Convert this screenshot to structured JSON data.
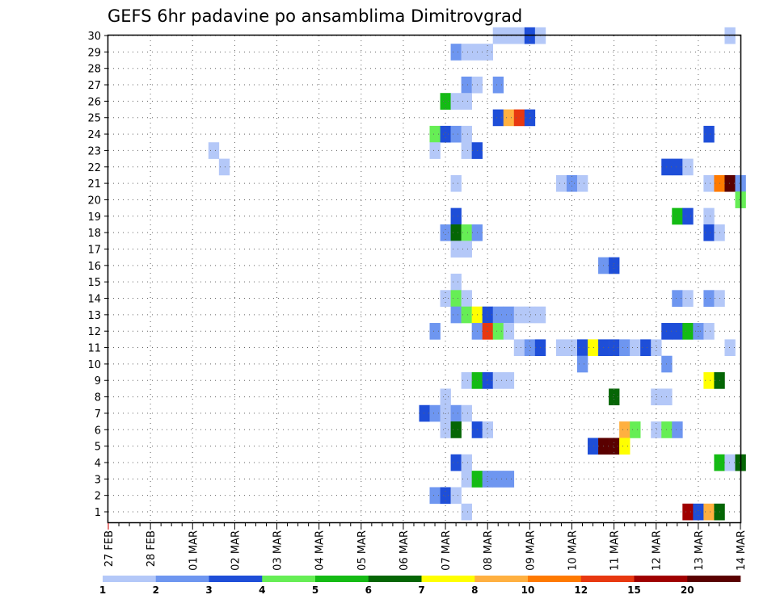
{
  "chart_data": {
    "type": "heatmap",
    "title": "GEFS 6hr padavine po ansamblima Dimitrovgrad",
    "xlabel": "",
    "ylabel": "",
    "x_ticks": [
      "27 FEB",
      "28 FEB",
      "01 MAR",
      "02 MAR",
      "03 MAR",
      "04 MAR",
      "05 MAR",
      "06 MAR",
      "07 MAR",
      "08 MAR",
      "09 MAR",
      "10 MAR",
      "11 MAR",
      "12 MAR",
      "13 MAR",
      "14 MAR"
    ],
    "x_unit": "6-hour step from 27 FEB 00h",
    "members": [
      1,
      2,
      3,
      4,
      5,
      6,
      7,
      8,
      9,
      10,
      11,
      12,
      13,
      14,
      15,
      16,
      17,
      18,
      19,
      20,
      21,
      22,
      23,
      24,
      25,
      26,
      27,
      28,
      29,
      30
    ],
    "grid": true,
    "legend_position": "bottom",
    "bins": [
      {
        "label": "1",
        "color": "#b4c8f8"
      },
      {
        "label": "2",
        "color": "#6e96f0"
      },
      {
        "label": "3",
        "color": "#1e4ed8"
      },
      {
        "label": "4",
        "color": "#66ee55"
      },
      {
        "label": "5",
        "color": "#14bb14"
      },
      {
        "label": "6",
        "color": "#056605"
      },
      {
        "label": "7",
        "color": "#ffff00"
      },
      {
        "label": "8",
        "color": "#ffb040"
      },
      {
        "label": "10",
        "color": "#ff7a00"
      },
      {
        "label": "12",
        "color": "#e83810"
      },
      {
        "label": "15",
        "color": "#a00000"
      },
      {
        "label": "20",
        "color": "#5a0000"
      }
    ],
    "cells": [
      {
        "m": 30,
        "t": 37,
        "b": 0
      },
      {
        "m": 30,
        "t": 38,
        "b": 0
      },
      {
        "m": 30,
        "t": 39,
        "b": 0
      },
      {
        "m": 30,
        "t": 40,
        "b": 2
      },
      {
        "m": 30,
        "t": 41,
        "b": 0
      },
      {
        "m": 30,
        "t": 59,
        "b": 0
      },
      {
        "m": 29,
        "t": 33,
        "b": 1
      },
      {
        "m": 29,
        "t": 34,
        "b": 0
      },
      {
        "m": 29,
        "t": 35,
        "b": 0
      },
      {
        "m": 29,
        "t": 36,
        "b": 0
      },
      {
        "m": 27,
        "t": 34,
        "b": 1
      },
      {
        "m": 27,
        "t": 35,
        "b": 0
      },
      {
        "m": 27,
        "t": 37,
        "b": 1
      },
      {
        "m": 26,
        "t": 32,
        "b": 4
      },
      {
        "m": 26,
        "t": 33,
        "b": 0
      },
      {
        "m": 26,
        "t": 34,
        "b": 0
      },
      {
        "m": 25,
        "t": 37,
        "b": 2
      },
      {
        "m": 25,
        "t": 38,
        "b": 7
      },
      {
        "m": 25,
        "t": 39,
        "b": 9
      },
      {
        "m": 25,
        "t": 40,
        "b": 2
      },
      {
        "m": 24,
        "t": 31,
        "b": 3
      },
      {
        "m": 24,
        "t": 32,
        "b": 2
      },
      {
        "m": 24,
        "t": 33,
        "b": 1
      },
      {
        "m": 24,
        "t": 34,
        "b": 0
      },
      {
        "m": 24,
        "t": 57,
        "b": 2
      },
      {
        "m": 23,
        "t": 10,
        "b": 0
      },
      {
        "m": 23,
        "t": 31,
        "b": 0
      },
      {
        "m": 23,
        "t": 34,
        "b": 0
      },
      {
        "m": 23,
        "t": 35,
        "b": 2
      },
      {
        "m": 22,
        "t": 11,
        "b": 0
      },
      {
        "m": 22,
        "t": 53,
        "b": 2
      },
      {
        "m": 22,
        "t": 54,
        "b": 2
      },
      {
        "m": 22,
        "t": 55,
        "b": 0
      },
      {
        "m": 21,
        "t": 33,
        "b": 0
      },
      {
        "m": 21,
        "t": 43,
        "b": 0
      },
      {
        "m": 21,
        "t": 44,
        "b": 1
      },
      {
        "m": 21,
        "t": 45,
        "b": 0
      },
      {
        "m": 21,
        "t": 57,
        "b": 0
      },
      {
        "m": 21,
        "t": 58,
        "b": 8
      },
      {
        "m": 21,
        "t": 59,
        "b": 11
      },
      {
        "m": 21,
        "t": 60,
        "b": 1
      },
      {
        "m": 20,
        "t": 60,
        "b": 3
      },
      {
        "m": 19,
        "t": 33,
        "b": 2
      },
      {
        "m": 19,
        "t": 54,
        "b": 4
      },
      {
        "m": 19,
        "t": 55,
        "b": 2
      },
      {
        "m": 19,
        "t": 57,
        "b": 0
      },
      {
        "m": 18,
        "t": 32,
        "b": 1
      },
      {
        "m": 18,
        "t": 33,
        "b": 5
      },
      {
        "m": 18,
        "t": 34,
        "b": 3
      },
      {
        "m": 18,
        "t": 35,
        "b": 1
      },
      {
        "m": 18,
        "t": 57,
        "b": 2
      },
      {
        "m": 18,
        "t": 58,
        "b": 0
      },
      {
        "m": 17,
        "t": 33,
        "b": 0
      },
      {
        "m": 17,
        "t": 34,
        "b": 0
      },
      {
        "m": 16,
        "t": 47,
        "b": 1
      },
      {
        "m": 16,
        "t": 48,
        "b": 2
      },
      {
        "m": 15,
        "t": 33,
        "b": 0
      },
      {
        "m": 14,
        "t": 32,
        "b": 0
      },
      {
        "m": 14,
        "t": 33,
        "b": 3
      },
      {
        "m": 14,
        "t": 34,
        "b": 0
      },
      {
        "m": 14,
        "t": 54,
        "b": 1
      },
      {
        "m": 14,
        "t": 55,
        "b": 0
      },
      {
        "m": 14,
        "t": 57,
        "b": 1
      },
      {
        "m": 14,
        "t": 58,
        "b": 0
      },
      {
        "m": 13,
        "t": 33,
        "b": 1
      },
      {
        "m": 13,
        "t": 34,
        "b": 3
      },
      {
        "m": 13,
        "t": 35,
        "b": 6
      },
      {
        "m": 13,
        "t": 36,
        "b": 2
      },
      {
        "m": 13,
        "t": 37,
        "b": 1
      },
      {
        "m": 13,
        "t": 38,
        "b": 1
      },
      {
        "m": 13,
        "t": 39,
        "b": 0
      },
      {
        "m": 13,
        "t": 40,
        "b": 0
      },
      {
        "m": 13,
        "t": 41,
        "b": 0
      },
      {
        "m": 12,
        "t": 31,
        "b": 1
      },
      {
        "m": 12,
        "t": 35,
        "b": 1
      },
      {
        "m": 12,
        "t": 36,
        "b": 9
      },
      {
        "m": 12,
        "t": 37,
        "b": 3
      },
      {
        "m": 12,
        "t": 38,
        "b": 0
      },
      {
        "m": 12,
        "t": 53,
        "b": 2
      },
      {
        "m": 12,
        "t": 54,
        "b": 2
      },
      {
        "m": 12,
        "t": 55,
        "b": 4
      },
      {
        "m": 12,
        "t": 56,
        "b": 1
      },
      {
        "m": 12,
        "t": 57,
        "b": 0
      },
      {
        "m": 11,
        "t": 39,
        "b": 0
      },
      {
        "m": 11,
        "t": 40,
        "b": 1
      },
      {
        "m": 11,
        "t": 41,
        "b": 2
      },
      {
        "m": 11,
        "t": 43,
        "b": 0
      },
      {
        "m": 11,
        "t": 44,
        "b": 0
      },
      {
        "m": 11,
        "t": 45,
        "b": 2
      },
      {
        "m": 11,
        "t": 46,
        "b": 6
      },
      {
        "m": 11,
        "t": 47,
        "b": 2
      },
      {
        "m": 11,
        "t": 48,
        "b": 2
      },
      {
        "m": 11,
        "t": 49,
        "b": 1
      },
      {
        "m": 11,
        "t": 50,
        "b": 0
      },
      {
        "m": 11,
        "t": 51,
        "b": 2
      },
      {
        "m": 11,
        "t": 52,
        "b": 0
      },
      {
        "m": 11,
        "t": 59,
        "b": 0
      },
      {
        "m": 10,
        "t": 45,
        "b": 1
      },
      {
        "m": 10,
        "t": 53,
        "b": 1
      },
      {
        "m": 9,
        "t": 34,
        "b": 0
      },
      {
        "m": 9,
        "t": 35,
        "b": 4
      },
      {
        "m": 9,
        "t": 36,
        "b": 2
      },
      {
        "m": 9,
        "t": 37,
        "b": 0
      },
      {
        "m": 9,
        "t": 38,
        "b": 0
      },
      {
        "m": 9,
        "t": 57,
        "b": 6
      },
      {
        "m": 9,
        "t": 58,
        "b": 5
      },
      {
        "m": 8,
        "t": 32,
        "b": 0
      },
      {
        "m": 8,
        "t": 48,
        "b": 5
      },
      {
        "m": 8,
        "t": 52,
        "b": 0
      },
      {
        "m": 8,
        "t": 53,
        "b": 0
      },
      {
        "m": 7,
        "t": 30,
        "b": 2
      },
      {
        "m": 7,
        "t": 31,
        "b": 1
      },
      {
        "m": 7,
        "t": 32,
        "b": 0
      },
      {
        "m": 7,
        "t": 33,
        "b": 1
      },
      {
        "m": 7,
        "t": 34,
        "b": 0
      },
      {
        "m": 6,
        "t": 32,
        "b": 0
      },
      {
        "m": 6,
        "t": 33,
        "b": 5
      },
      {
        "m": 6,
        "t": 35,
        "b": 2
      },
      {
        "m": 6,
        "t": 36,
        "b": 0
      },
      {
        "m": 6,
        "t": 49,
        "b": 7
      },
      {
        "m": 6,
        "t": 50,
        "b": 3
      },
      {
        "m": 6,
        "t": 52,
        "b": 0
      },
      {
        "m": 6,
        "t": 53,
        "b": 3
      },
      {
        "m": 6,
        "t": 54,
        "b": 1
      },
      {
        "m": 5,
        "t": 46,
        "b": 2
      },
      {
        "m": 5,
        "t": 47,
        "b": 11
      },
      {
        "m": 5,
        "t": 48,
        "b": 11
      },
      {
        "m": 5,
        "t": 49,
        "b": 6
      },
      {
        "m": 4,
        "t": 33,
        "b": 2
      },
      {
        "m": 4,
        "t": 34,
        "b": 0
      },
      {
        "m": 4,
        "t": 58,
        "b": 4
      },
      {
        "m": 4,
        "t": 59,
        "b": 0
      },
      {
        "m": 4,
        "t": 60,
        "b": 5
      },
      {
        "m": 3,
        "t": 34,
        "b": 0
      },
      {
        "m": 3,
        "t": 35,
        "b": 4
      },
      {
        "m": 3,
        "t": 36,
        "b": 1
      },
      {
        "m": 3,
        "t": 37,
        "b": 1
      },
      {
        "m": 3,
        "t": 38,
        "b": 1
      },
      {
        "m": 2,
        "t": 31,
        "b": 1
      },
      {
        "m": 2,
        "t": 32,
        "b": 2
      },
      {
        "m": 2,
        "t": 33,
        "b": 0
      },
      {
        "m": 1,
        "t": 34,
        "b": 0
      },
      {
        "m": 1,
        "t": 55,
        "b": 10
      },
      {
        "m": 1,
        "t": 56,
        "b": 2
      },
      {
        "m": 1,
        "t": 57,
        "b": 7
      },
      {
        "m": 1,
        "t": 58,
        "b": 5
      }
    ]
  }
}
